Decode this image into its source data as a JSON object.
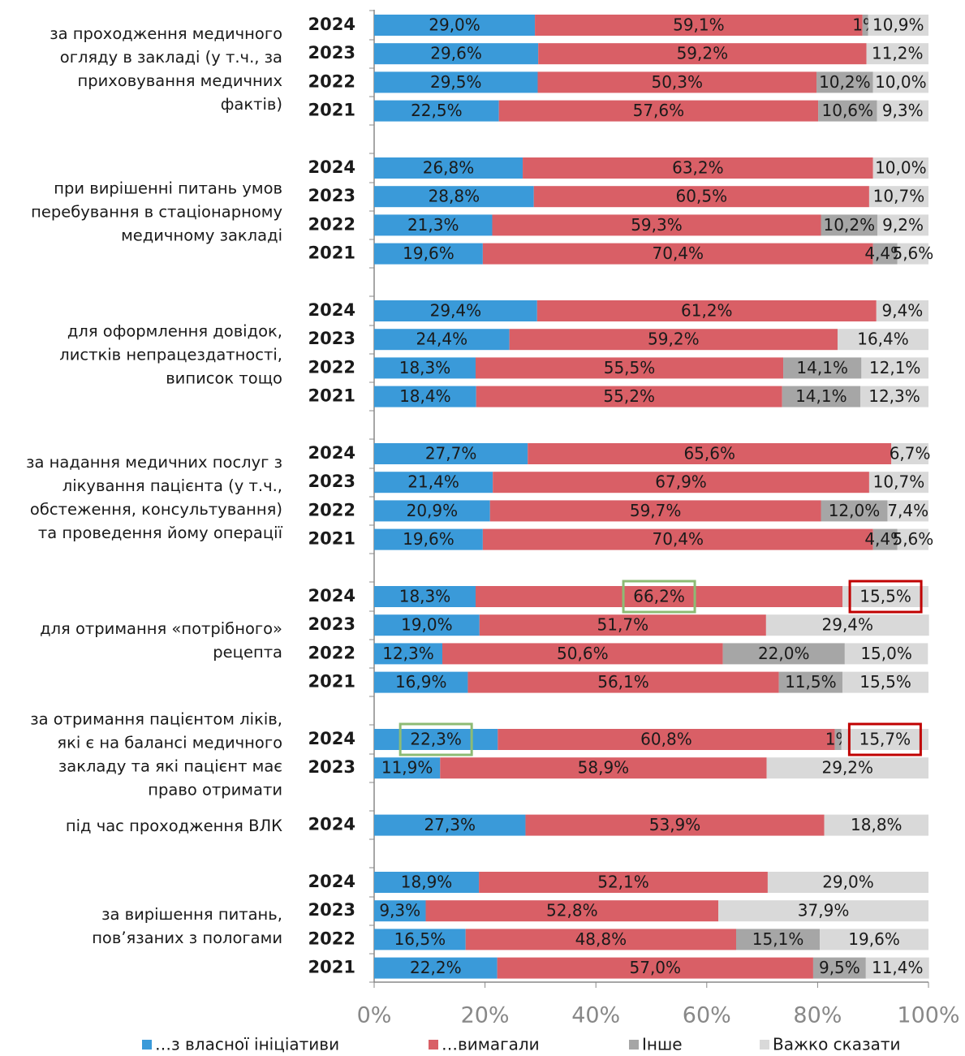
{
  "chart_data": {
    "type": "stacked_barh",
    "groups": [
      {
        "label": [
          "за проходження медичного",
          "огляду в закладі (у т.ч., за",
          "приховування медичних",
          "фактів)"
        ],
        "categories": [
          "2024",
          "2023",
          "2022",
          "2021"
        ]
      },
      {
        "label": [
          "при вирішенні питань умов",
          "перебування в стаціонарному",
          "медичному закладі"
        ],
        "categories": [
          "2024",
          "2023",
          "2022",
          "2021"
        ]
      },
      {
        "label": [
          "для оформлення довідок,",
          "листків непрацездатності,",
          "виписок тощо"
        ],
        "categories": [
          "2024",
          "2023",
          "2022",
          "2021"
        ]
      },
      {
        "label": [
          "за надання медичних послуг з",
          "лікування  пацієнта (у т.ч.,",
          "обстеження, консультування)",
          "та проведення йому операції"
        ],
        "categories": [
          "2024",
          "2023",
          "2022",
          "2021"
        ]
      },
      {
        "label": [
          "для отримання «потрібного»",
          "рецепта"
        ],
        "categories": [
          "2024",
          "2023",
          "2022",
          "2021"
        ]
      },
      {
        "label": [
          "за отримання пацієнтом ліків,",
          "які є на балансі медичного",
          "закладу та які пацієнт має",
          "право отримати"
        ],
        "categories": [
          "2024",
          "2023"
        ]
      },
      {
        "label": [
          "під час проходження ВЛК"
        ],
        "categories": [
          "2024"
        ]
      },
      {
        "label": [
          "за вирішення питань,",
          "пов’язаних з пологами"
        ],
        "categories": [
          "2024",
          "2023",
          "2022",
          "2021"
        ]
      }
    ],
    "series": [
      {
        "name": "…з власної ініціативи",
        "color": "#3a9ad9",
        "values": [
          29.0,
          29.6,
          29.5,
          22.5,
          26.8,
          28.8,
          21.3,
          19.6,
          29.4,
          24.4,
          18.3,
          18.4,
          27.7,
          21.4,
          20.9,
          19.6,
          18.3,
          19.0,
          12.3,
          16.9,
          22.3,
          11.9,
          27.3,
          18.9,
          9.3,
          16.5,
          22.2
        ],
        "value_labels": [
          "29,0%",
          "29,6%",
          "29,5%",
          "22,5%",
          "26,8%",
          "28,8%",
          "21,3%",
          "19,6%",
          "29,4%",
          "24,4%",
          "18,3%",
          "18,4%",
          "27,7%",
          "21,4%",
          "20,9%",
          "19,6%",
          "18,3%",
          "19,0%",
          "12,3%",
          "16,9%",
          "22,3%",
          "11,9%",
          "27,3%",
          "18,9%",
          "9,3%",
          "16,5%",
          "22,2%"
        ]
      },
      {
        "name": "…вимагали",
        "color": "#d95f66",
        "values": [
          59.1,
          59.2,
          50.3,
          57.6,
          63.2,
          60.5,
          59.3,
          70.4,
          61.2,
          59.2,
          55.5,
          55.2,
          65.6,
          67.9,
          59.7,
          70.4,
          66.2,
          51.7,
          50.6,
          56.1,
          60.8,
          58.9,
          53.9,
          52.1,
          52.8,
          48.8,
          57.0
        ],
        "value_labels": [
          "59,1%",
          "59,2%",
          "50,3%",
          "57,6%",
          "63,2%",
          "60,5%",
          "59,3%",
          "70,4%",
          "61,2%",
          "59,2%",
          "55,5%",
          "55,2%",
          "65,6%",
          "67,9%",
          "59,7%",
          "70,4%",
          "66,2%",
          "51,7%",
          "50,6%",
          "56,1%",
          "60,8%",
          "58,9%",
          "53,9%",
          "52,1%",
          "52,8%",
          "48,8%",
          "57,0%"
        ]
      },
      {
        "name": "Інше",
        "color": "#a6a6a6",
        "values": [
          1,
          null,
          10.2,
          10.6,
          null,
          null,
          10.2,
          4.4,
          null,
          null,
          14.1,
          14.1,
          null,
          null,
          12.0,
          4.4,
          null,
          null,
          22.0,
          11.5,
          1.2,
          null,
          null,
          null,
          null,
          15.1,
          9.5
        ],
        "value_labels": [
          "1%",
          null,
          "10,2%",
          "10,6%",
          null,
          null,
          "10,2%",
          "4,4%",
          null,
          null,
          "14,1%",
          "14,1%",
          null,
          null,
          "12,0%",
          "4,4%",
          null,
          null,
          "22,0%",
          "11,5%",
          "1%",
          null,
          null,
          null,
          null,
          "15,1%",
          "9,5%"
        ]
      },
      {
        "name": "Важко сказати",
        "color": "#d9d9d9",
        "values": [
          10.9,
          11.2,
          10.0,
          9.3,
          10.0,
          10.7,
          9.2,
          5.6,
          9.4,
          16.4,
          12.1,
          12.3,
          6.7,
          10.7,
          7.4,
          5.6,
          15.5,
          29.4,
          15.0,
          15.5,
          15.7,
          29.2,
          18.8,
          29.0,
          37.9,
          19.6,
          11.4
        ],
        "value_labels": [
          "10,9%",
          "11,2%",
          "10,0%",
          "9,3%",
          "10,0%",
          "10,7%",
          "9,2%",
          "5,6%",
          "9,4%",
          "16,4%",
          "12,1%",
          "12,3%",
          "6,7%",
          "10,7%",
          "7,4%",
          "5,6%",
          "15,5%",
          "29,4%",
          "15,0%",
          "15,5%",
          "15,7%",
          "29,2%",
          "18,8%",
          "29,0%",
          "37,9%",
          "19,6%",
          "11,4%"
        ]
      }
    ],
    "xlim": [
      0,
      100
    ],
    "xticks": [
      {
        "value": 0,
        "label": "0%"
      },
      {
        "value": 20,
        "label": "20%"
      },
      {
        "value": 40,
        "label": "40%"
      },
      {
        "value": 60,
        "label": "60%"
      },
      {
        "value": 80,
        "label": "80%"
      },
      {
        "value": 100,
        "label": "100%"
      }
    ],
    "legend": "bottom"
  }
}
